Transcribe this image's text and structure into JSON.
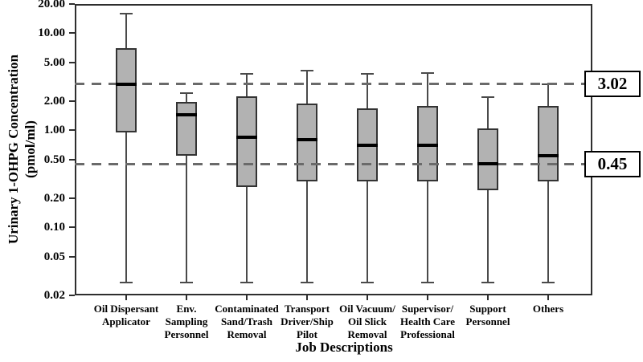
{
  "y_axis": {
    "title_line1": "Urinary 1-OHPG Concentration",
    "title_line2": "(pmol/ml)",
    "tick_labels": [
      "20.00",
      "10.00",
      "5.00",
      "2.00",
      "1.00",
      "0.50",
      "0.20",
      "0.10",
      "0.05",
      "0.02"
    ]
  },
  "x_axis": {
    "title": "Job Descriptions"
  },
  "colors": {
    "box_fill": "#b2b2b2",
    "box_border": "#333333",
    "median": "#000000",
    "whisker": "#4a4a4a",
    "frame": "#2e2e2e",
    "dash_line": "#6a6a6a",
    "text": "#000000",
    "background": "#ffffff"
  },
  "chart_data": {
    "type": "boxplot",
    "title": "",
    "xlabel": "Job Descriptions",
    "ylabel": "Urinary 1-OHPG Concentration (pmol/ml)",
    "y_scale": "log",
    "ylim": [
      0.02,
      20
    ],
    "y_ticks": [
      20,
      10,
      5,
      2,
      1,
      0.5,
      0.2,
      0.1,
      0.05,
      0.02
    ],
    "grid": false,
    "legend": "none",
    "reference_lines": [
      {
        "label": "3.02",
        "value": 3.02
      },
      {
        "label": "0.45",
        "value": 0.45
      }
    ],
    "categories": [
      "Oil Dispersant Applicator",
      "Env. Sampling Personnel",
      "Contaminated Sand/Trash Removal",
      "Transport Driver/Ship Pilot",
      "Oil Vacuum/ Oil Slick Removal",
      "Supervisor/ Health Care Professional",
      "Support Personnel",
      "Others"
    ],
    "boxes": [
      {
        "category": "Oil Dispersant Applicator",
        "label_lines": [
          "Oil Dispersant",
          "Applicator"
        ],
        "whisker_low": 0.027,
        "q1": 0.95,
        "median": 3.0,
        "q3": 7.0,
        "whisker_high": 16.0
      },
      {
        "category": "Env. Sampling Personnel",
        "label_lines": [
          "Env.",
          "Sampling",
          "Personnel"
        ],
        "whisker_low": 0.027,
        "q1": 0.55,
        "median": 1.45,
        "q3": 1.95,
        "whisker_high": 2.4
      },
      {
        "category": "Contaminated Sand/Trash Removal",
        "label_lines": [
          "Contaminated",
          "Sand/Trash",
          "Removal"
        ],
        "whisker_low": 0.027,
        "q1": 0.26,
        "median": 0.85,
        "q3": 2.25,
        "whisker_high": 3.8
      },
      {
        "category": "Transport Driver/Ship Pilot",
        "label_lines": [
          "Transport",
          "Driver/Ship",
          "Pilot"
        ],
        "whisker_low": 0.027,
        "q1": 0.3,
        "median": 0.8,
        "q3": 1.9,
        "whisker_high": 4.1
      },
      {
        "category": "Oil Vacuum/ Oil Slick Removal",
        "label_lines": [
          "Oil Vacuum/",
          "Oil Slick",
          "Removal"
        ],
        "whisker_low": 0.027,
        "q1": 0.3,
        "median": 0.7,
        "q3": 1.7,
        "whisker_high": 3.8
      },
      {
        "category": "Supervisor/ Health Care Professional",
        "label_lines": [
          "Supervisor/",
          "Health Care",
          "Professional"
        ],
        "whisker_low": 0.027,
        "q1": 0.3,
        "median": 0.7,
        "q3": 1.8,
        "whisker_high": 3.9
      },
      {
        "category": "Support Personnel",
        "label_lines": [
          "Support",
          "Personnel"
        ],
        "whisker_low": 0.027,
        "q1": 0.24,
        "median": 0.45,
        "q3": 1.05,
        "whisker_high": 2.2
      },
      {
        "category": "Others",
        "label_lines": [
          "Others"
        ],
        "whisker_low": 0.027,
        "q1": 0.3,
        "median": 0.55,
        "q3": 1.8,
        "whisker_high": 3.0
      }
    ]
  }
}
